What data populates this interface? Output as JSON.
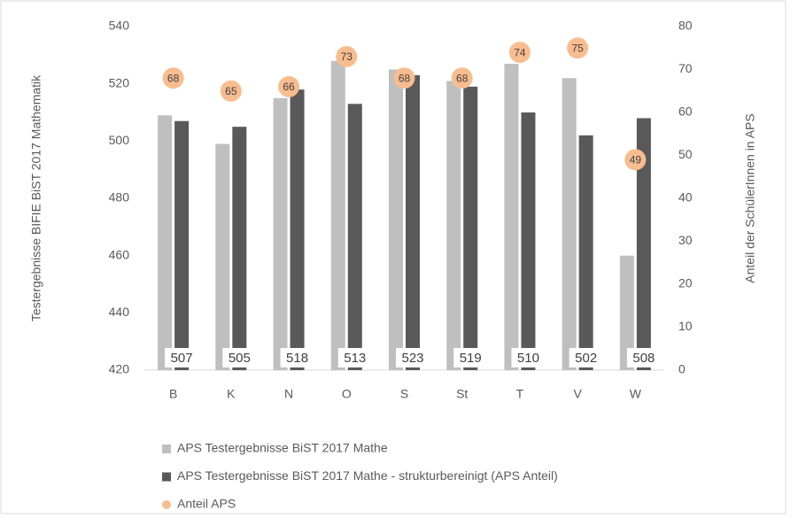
{
  "chart_data": {
    "type": "bar",
    "categories": [
      "B",
      "K",
      "N",
      "O",
      "S",
      "St",
      "T",
      "V",
      "W"
    ],
    "series": [
      {
        "name": "APS Testergebnisse BiST 2017 Mathe",
        "color": "#bfbfbf",
        "values": [
          509,
          499,
          515,
          528,
          525,
          521,
          527,
          522,
          460
        ]
      },
      {
        "name": "APS Testergebnisse BiST 2017 Mathe - strukturbereinigt (APS Anteil)",
        "color": "#595959",
        "values": [
          507,
          505,
          518,
          513,
          523,
          519,
          510,
          502,
          508
        ],
        "data_labels": true
      },
      {
        "name": "Anteil APS",
        "type": "scatter",
        "axis": "y2",
        "color": "#f8bd8f",
        "values": [
          68,
          65,
          66,
          73,
          68,
          68,
          74,
          75,
          49
        ],
        "data_labels": true
      }
    ],
    "y_label": "Testergebnisse  BIFIE BiST 2017 Mathematik",
    "y2_label": "Anteil der SchülerInnen in APS",
    "ylim": [
      420,
      540
    ],
    "yticks": [
      420,
      440,
      460,
      480,
      500,
      520,
      540
    ],
    "y2lim": [
      0,
      80
    ],
    "y2ticks": [
      0,
      10,
      20,
      30,
      40,
      50,
      60,
      70,
      80
    ],
    "grid": false,
    "legend": "bottom"
  }
}
